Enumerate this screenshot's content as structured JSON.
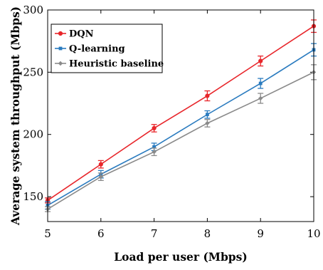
{
  "chart_data": {
    "type": "line",
    "xlabel": "Load per user (Mbps)",
    "ylabel": "Average system throughput (Mbps)",
    "x": [
      5,
      6,
      7,
      8,
      9,
      10
    ],
    "xlim": [
      5,
      10
    ],
    "ylim": [
      130,
      300
    ],
    "xticks": [
      "5",
      "6",
      "7",
      "8",
      "9",
      "10"
    ],
    "yticks": [
      "150",
      "200",
      "250",
      "300"
    ],
    "ytick_values": [
      150,
      200,
      250,
      300
    ],
    "grid": false,
    "legend_position": "top-left",
    "series": [
      {
        "name": "DQN",
        "color": "#e8262b",
        "marker": "circle",
        "values": [
          147,
          176,
          205,
          231,
          259,
          287
        ],
        "errors": [
          2,
          3,
          3,
          4,
          4,
          5
        ]
      },
      {
        "name": "Q-learning",
        "color": "#2a7bbf",
        "marker": "square",
        "values": [
          143,
          168,
          190,
          216,
          241,
          268
        ],
        "errors": [
          3,
          3,
          3,
          3,
          4,
          5
        ]
      },
      {
        "name": "Heuristic baseline",
        "color": "#8a8a8a",
        "marker": "diamond",
        "values": [
          140,
          166,
          186,
          209,
          229,
          250
        ],
        "errors": [
          2,
          3,
          3,
          3,
          4,
          6
        ]
      }
    ]
  }
}
